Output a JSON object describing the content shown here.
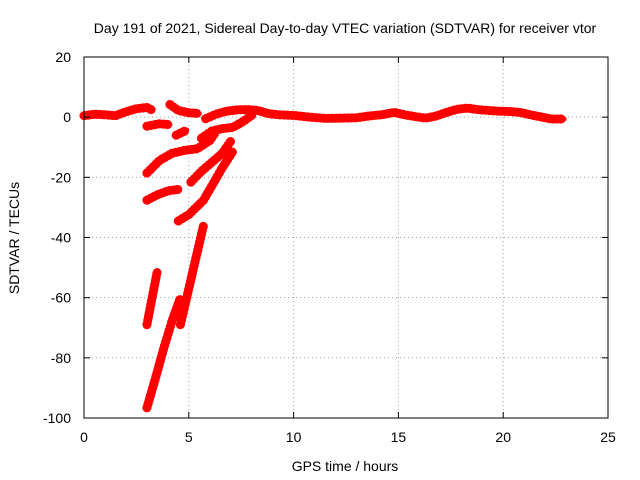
{
  "chart_data": {
    "type": "line",
    "title": "Day 191 of 2021, Sidereal Day-to-day VTEC variation (SDTVAR) for receiver vtor",
    "xlabel": "GPS time / hours",
    "ylabel": "SDTVAR / TECUs",
    "xlim": [
      0,
      25
    ],
    "ylim": [
      -100,
      20
    ],
    "xticks": [
      0,
      5,
      10,
      15,
      20,
      25
    ],
    "yticks": [
      -100,
      -80,
      -60,
      -40,
      -20,
      0,
      20
    ],
    "grid": true,
    "series_color": "#ff0000",
    "series": [
      {
        "name": "main-trace",
        "points": [
          [
            0,
            0.5
          ],
          [
            0.5,
            1
          ],
          [
            1,
            0.8
          ],
          [
            1.5,
            0.5
          ],
          [
            2,
            1.8
          ],
          [
            2.5,
            2.8
          ],
          [
            3,
            3.2
          ],
          [
            3.2,
            2.5
          ]
        ]
      },
      {
        "name": "main-trace-2",
        "points": [
          [
            4.1,
            4.2
          ],
          [
            4.5,
            2.2
          ],
          [
            5,
            1.5
          ],
          [
            5.5,
            1.2
          ]
        ]
      },
      {
        "name": "main-trace-3",
        "points": [
          [
            5.8,
            -0.5
          ],
          [
            6.3,
            1
          ],
          [
            6.8,
            2
          ],
          [
            7.3,
            2.4
          ],
          [
            7.8,
            2.5
          ],
          [
            8.3,
            2.2
          ],
          [
            8.8,
            1.2
          ],
          [
            9.3,
            0.8
          ],
          [
            10,
            0.6
          ],
          [
            10.8,
            0
          ],
          [
            11.5,
            -0.4
          ],
          [
            12.3,
            -0.3
          ],
          [
            13,
            -0.2
          ],
          [
            13.6,
            0.4
          ],
          [
            14.2,
            0.8
          ],
          [
            14.8,
            1.6
          ],
          [
            15.3,
            0.8
          ],
          [
            15.8,
            0.2
          ],
          [
            16.3,
            -0.3
          ],
          [
            16.8,
            0.4
          ],
          [
            17.3,
            1.6
          ],
          [
            17.8,
            2.6
          ],
          [
            18.3,
            3
          ],
          [
            18.8,
            2.5
          ],
          [
            19.3,
            2.2
          ],
          [
            19.8,
            2
          ],
          [
            20.3,
            1.9
          ],
          [
            20.8,
            1.6
          ],
          [
            21.3,
            0.8
          ],
          [
            21.8,
            0.1
          ],
          [
            22.3,
            -0.6
          ],
          [
            22.9,
            -0.6
          ]
        ]
      },
      {
        "name": "trace-a",
        "points": [
          [
            3,
            -3
          ],
          [
            3.6,
            -2.2
          ],
          [
            4.1,
            -2.5
          ]
        ]
      },
      {
        "name": "trace-b",
        "points": [
          [
            4.4,
            -6
          ],
          [
            4.9,
            -4.3
          ]
        ]
      },
      {
        "name": "trace-c",
        "points": [
          [
            5.6,
            -7
          ],
          [
            6.1,
            -4.6
          ],
          [
            6.6,
            -3.8
          ],
          [
            7.1,
            -3.4
          ],
          [
            7.6,
            -1.4
          ],
          [
            8,
            0.6
          ]
        ]
      },
      {
        "name": "trace-d",
        "points": [
          [
            3,
            -18.6
          ],
          [
            3.6,
            -14.4
          ],
          [
            4.2,
            -12
          ],
          [
            4.8,
            -11
          ],
          [
            5.4,
            -10.5
          ],
          [
            6,
            -7.8
          ],
          [
            6.3,
            -4.8
          ]
        ]
      },
      {
        "name": "trace-e",
        "points": [
          [
            5.1,
            -21.6
          ],
          [
            5.6,
            -18
          ],
          [
            6.1,
            -15
          ],
          [
            6.6,
            -12
          ],
          [
            7,
            -8
          ]
        ]
      },
      {
        "name": "trace-f",
        "points": [
          [
            3,
            -27.6
          ],
          [
            3.5,
            -25.8
          ],
          [
            4,
            -24.5
          ],
          [
            4.5,
            -24
          ]
        ]
      },
      {
        "name": "trace-g",
        "points": [
          [
            4.5,
            -34.5
          ],
          [
            5,
            -32.4
          ],
          [
            5.7,
            -27.6
          ],
          [
            6.2,
            -21.6
          ],
          [
            6.6,
            -16.8
          ],
          [
            7.1,
            -11.4
          ]
        ]
      },
      {
        "name": "trace-h",
        "points": [
          [
            3,
            -69
          ],
          [
            3.5,
            -51
          ]
        ]
      },
      {
        "name": "trace-i",
        "points": [
          [
            3,
            -96.6
          ],
          [
            3.4,
            -87
          ],
          [
            3.8,
            -77
          ],
          [
            4.2,
            -67.8
          ],
          [
            4.6,
            -60
          ]
        ]
      },
      {
        "name": "trace-j",
        "points": [
          [
            4.6,
            -69
          ],
          [
            5,
            -57
          ],
          [
            5.4,
            -45
          ],
          [
            5.7,
            -36
          ]
        ]
      }
    ]
  }
}
